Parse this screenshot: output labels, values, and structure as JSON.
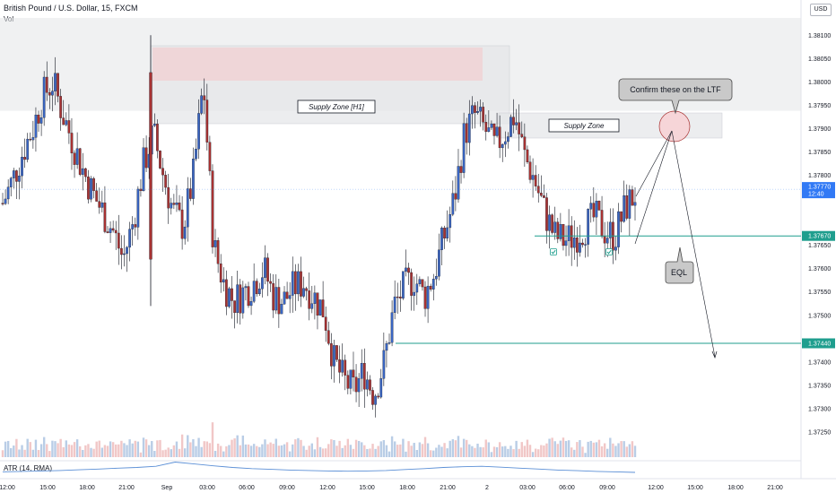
{
  "header": {
    "title": "British Pound / U.S. Dollar, 15, FXCM",
    "volume_label": "Vol",
    "atr_label": "ATR (14, RMA)",
    "currency_label": "USD"
  },
  "colors": {
    "up": "#3a66c4",
    "down": "#a83232",
    "volume_up": "#b9cde6",
    "volume_down": "#f1c7c7",
    "level": "#1f9e8e",
    "price_tag": "#3179f5",
    "atr": "#5b8fd6",
    "zone_fill": "#e4e5e8",
    "zone_inner": "#f3c9cc",
    "circle": "#f6d5d8"
  },
  "chart_data": {
    "type": "candlestick",
    "interval": "15m",
    "symbol": "GBPUSD",
    "ylim": [
      1.372,
      1.3816
    ],
    "y_ticks": [
      "1.38100",
      "1.38050",
      "1.38000",
      "1.37950",
      "1.37900",
      "1.37850",
      "1.37800",
      "1.37650",
      "1.37600",
      "1.37550",
      "1.37500",
      "1.37400",
      "1.37350",
      "1.37300",
      "1.37250"
    ],
    "x_ticks": [
      "12:00",
      "15:00",
      "18:00",
      "21:00",
      "Sep",
      "03:00",
      "06:00",
      "09:00",
      "12:00",
      "15:00",
      "18:00",
      "21:00",
      "2",
      "03:00",
      "06:00",
      "09:00",
      "12:00",
      "15:00",
      "18:00",
      "21:00"
    ],
    "price_path": [
      1.3774,
      1.3779,
      1.3785,
      1.379,
      1.3797,
      1.38,
      1.3793,
      1.3787,
      1.3781,
      1.3776,
      1.3772,
      1.3768,
      1.3762,
      1.377,
      1.3782,
      1.3789,
      1.378,
      1.3772,
      1.3769,
      1.378,
      1.38,
      1.3765,
      1.3757,
      1.3753,
      1.3755,
      1.3757,
      1.376,
      1.3754,
      1.3753,
      1.3756,
      1.3757,
      1.3754,
      1.3751,
      1.374,
      1.3736,
      1.3734,
      1.3738,
      1.3733,
      1.374,
      1.3752,
      1.3756,
      1.3758,
      1.3754,
      1.3759,
      1.3767,
      1.3775,
      1.3789,
      1.3793,
      1.379,
      1.3786,
      1.3789,
      1.3793,
      1.3784,
      1.3779,
      1.3772,
      1.3767,
      1.3766,
      1.3767,
      1.3769,
      1.3771,
      1.3768,
      1.3767,
      1.3773,
      1.3776
    ],
    "current_price": {
      "value": 1.3777,
      "label": "1.37770",
      "countdown": "12:40"
    },
    "levels": [
      {
        "value": 1.3767,
        "label": "1.37670"
      },
      {
        "value": 1.3744,
        "label": "1.37440"
      }
    ],
    "zones": [
      {
        "label": "Supply Zone [H1]",
        "top": 1.381,
        "bottom": 1.3794
      },
      {
        "label": "Supply Zone",
        "top": 1.3795,
        "bottom": 1.3789
      }
    ],
    "annotations": [
      {
        "type": "callout",
        "text": "Confirm these on the LTF"
      },
      {
        "type": "callout",
        "text": "EQL"
      },
      {
        "type": "checkmark",
        "count": 2
      }
    ],
    "volume": "histogram",
    "atr_series": [
      0.36,
      0.38,
      0.4,
      0.42,
      0.45,
      0.48,
      0.52,
      0.55,
      0.6,
      0.78,
      0.7,
      0.62,
      0.55,
      0.5,
      0.47,
      0.44,
      0.42,
      0.4,
      0.39,
      0.4,
      0.42,
      0.46,
      0.5,
      0.55,
      0.58,
      0.6,
      0.56,
      0.52,
      0.48,
      0.44,
      0.41,
      0.38,
      0.36,
      0.34
    ]
  }
}
